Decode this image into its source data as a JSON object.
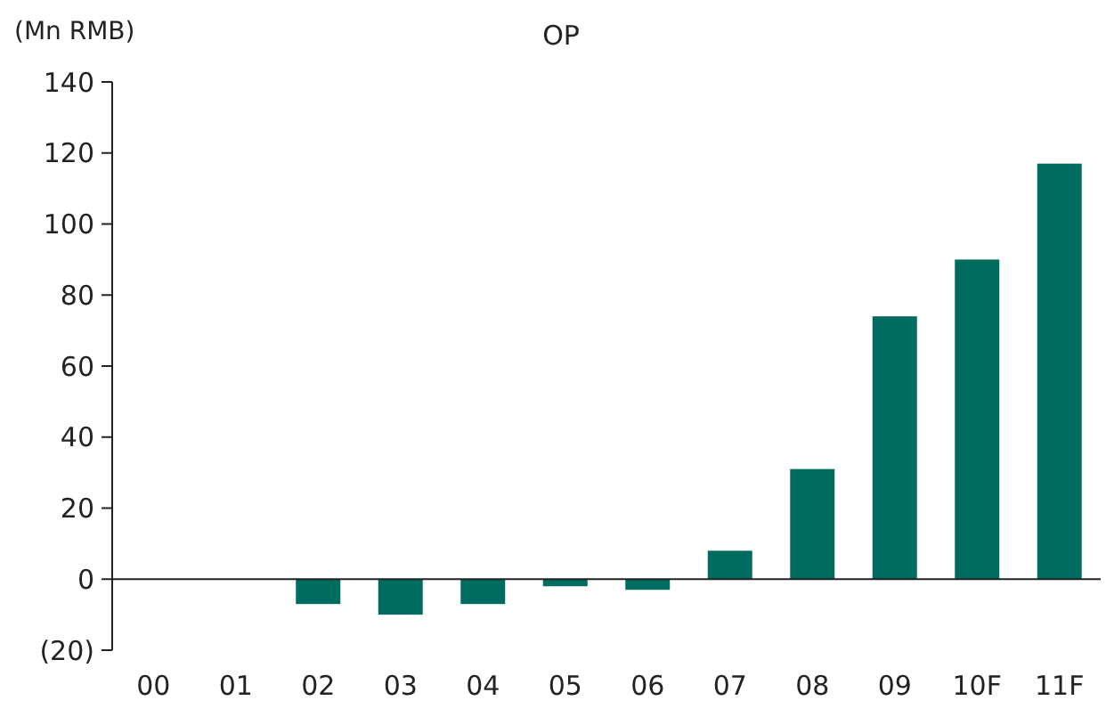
{
  "chart_data": {
    "type": "bar",
    "title": "OP",
    "ylabel": "(Mn RMB)",
    "categories": [
      "00",
      "01",
      "02",
      "03",
      "04",
      "05",
      "06",
      "07",
      "08",
      "09",
      "10F",
      "11F"
    ],
    "values": [
      null,
      null,
      -7,
      -10,
      -7,
      -2,
      -3,
      8,
      31,
      74,
      90,
      117
    ],
    "color": "#006b5f",
    "ylim": [
      -20,
      140
    ],
    "yticks": [
      {
        "value": -20,
        "label": "(20)"
      },
      0,
      20,
      40,
      60,
      80,
      100,
      120,
      140
    ]
  }
}
